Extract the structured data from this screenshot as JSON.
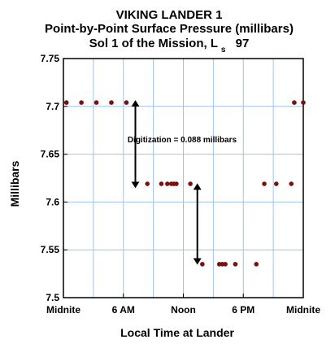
{
  "chart_data": {
    "type": "scatter",
    "title": "VIKING LANDER 1",
    "subtitle": "Point-by-Point Surface Pressure (millibars)",
    "subtitle2_main": "Sol 1 of the Mission, L",
    "subtitle2_sub": "s",
    "subtitle2_value": "97",
    "xlabel": "Local Time at Lander",
    "ylabel": "Millibars",
    "xlim": [
      0,
      24
    ],
    "ylim": [
      7.5,
      7.75
    ],
    "x_ticks": [
      {
        "value": 0,
        "label": "Midnite"
      },
      {
        "value": 6,
        "label": "6 AM"
      },
      {
        "value": 12,
        "label": "Noon"
      },
      {
        "value": 18,
        "label": "6 PM"
      },
      {
        "value": 24,
        "label": "Midnite"
      }
    ],
    "y_ticks": [
      {
        "value": 7.5,
        "label": "7.5"
      },
      {
        "value": 7.55,
        "label": "7.55"
      },
      {
        "value": 7.6,
        "label": "7.6"
      },
      {
        "value": 7.65,
        "label": "7.65"
      },
      {
        "value": 7.7,
        "label": "7.7"
      },
      {
        "value": 7.75,
        "label": "7.75"
      }
    ],
    "x_grid": [
      0,
      3,
      6,
      9,
      12,
      15,
      18,
      21,
      24
    ],
    "y_grid": [
      7.5,
      7.55,
      7.6,
      7.65,
      7.7,
      7.75
    ],
    "grid": true,
    "marker_color": "#7a1010",
    "grid_color": "#9ec3ea",
    "series": [
      {
        "points": [
          {
            "x": 0.3,
            "y": 7.704
          },
          {
            "x": 1.8,
            "y": 7.704
          },
          {
            "x": 3.3,
            "y": 7.704
          },
          {
            "x": 4.8,
            "y": 7.704
          },
          {
            "x": 6.3,
            "y": 7.704
          },
          {
            "x": 8.4,
            "y": 7.619
          },
          {
            "x": 9.8,
            "y": 7.619
          },
          {
            "x": 10.4,
            "y": 7.619
          },
          {
            "x": 10.8,
            "y": 7.619
          },
          {
            "x": 11.05,
            "y": 7.619
          },
          {
            "x": 11.3,
            "y": 7.619
          },
          {
            "x": 12.7,
            "y": 7.619
          },
          {
            "x": 13.9,
            "y": 7.535
          },
          {
            "x": 15.6,
            "y": 7.535
          },
          {
            "x": 15.9,
            "y": 7.535
          },
          {
            "x": 16.2,
            "y": 7.535
          },
          {
            "x": 17.2,
            "y": 7.535
          },
          {
            "x": 19.3,
            "y": 7.535
          },
          {
            "x": 20.1,
            "y": 7.619
          },
          {
            "x": 21.3,
            "y": 7.619
          },
          {
            "x": 22.8,
            "y": 7.619
          },
          {
            "x": 23.1,
            "y": 7.704
          },
          {
            "x": 24.0,
            "y": 7.704
          }
        ]
      }
    ],
    "annotation": {
      "text": "Digitization = 0.088 millibars",
      "x": 15.2,
      "y": 7.666
    },
    "arrows": [
      {
        "x": 7.2,
        "y1": 7.704,
        "y2": 7.617
      },
      {
        "x": 13.4,
        "y1": 7.617,
        "y2": 7.537
      }
    ]
  }
}
